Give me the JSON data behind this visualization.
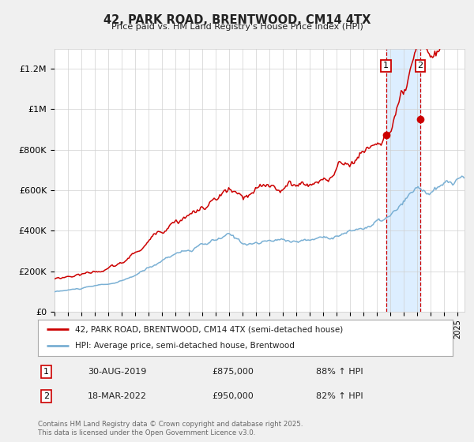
{
  "title": "42, PARK ROAD, BRENTWOOD, CM14 4TX",
  "subtitle": "Price paid vs. HM Land Registry's House Price Index (HPI)",
  "ylim": [
    0,
    1300000
  ],
  "yticks": [
    0,
    200000,
    400000,
    600000,
    800000,
    1000000,
    1200000
  ],
  "ytick_labels": [
    "£0",
    "£200K",
    "£400K",
    "£600K",
    "£800K",
    "£1M",
    "£1.2M"
  ],
  "background_color": "#f0f0f0",
  "plot_bg_color": "#ffffff",
  "red_color": "#cc0000",
  "blue_color": "#7ab0d4",
  "marker1_year": 2019.667,
  "marker1_value": 875000,
  "marker2_year": 2022.208,
  "marker2_value": 950000,
  "sale1_date": "30-AUG-2019",
  "sale1_price": "£875,000",
  "sale1_hpi": "88% ↑ HPI",
  "sale2_date": "18-MAR-2022",
  "sale2_price": "£950,000",
  "sale2_hpi": "82% ↑ HPI",
  "legend_line1": "42, PARK ROAD, BRENTWOOD, CM14 4TX (semi-detached house)",
  "legend_line2": "HPI: Average price, semi-detached house, Brentwood",
  "footer": "Contains HM Land Registry data © Crown copyright and database right 2025.\nThis data is licensed under the Open Government Licence v3.0.",
  "shade_color": "#ddeeff"
}
